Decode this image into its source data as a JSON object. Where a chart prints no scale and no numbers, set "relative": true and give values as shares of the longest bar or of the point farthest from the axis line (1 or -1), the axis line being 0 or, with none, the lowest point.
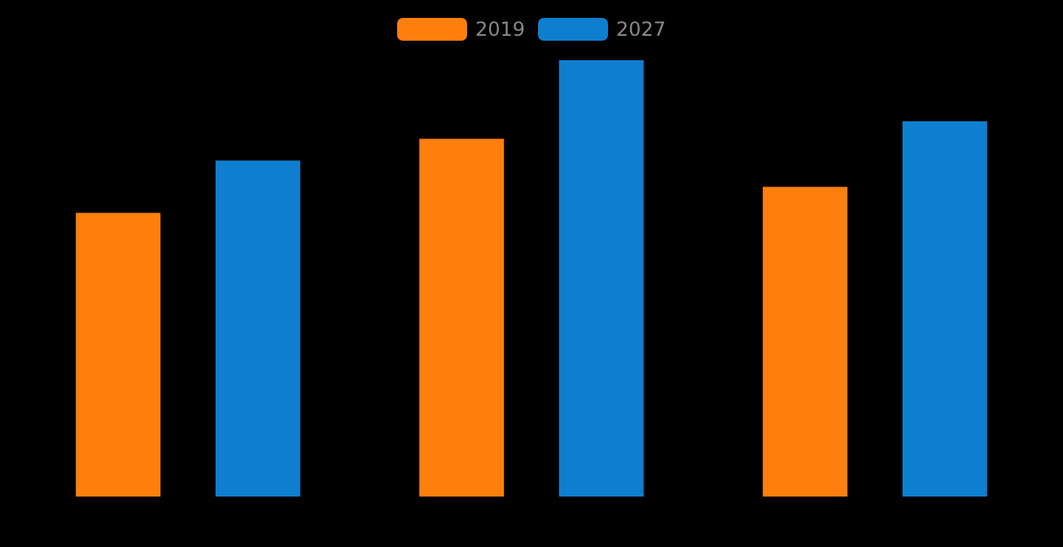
{
  "chart_data": {
    "type": "bar",
    "relative": true,
    "categories": [
      null,
      null,
      null
    ],
    "series": [
      {
        "name": "2019",
        "color": "#ff7f0e",
        "values": [
          0.65,
          0.82,
          0.71
        ]
      },
      {
        "name": "2027",
        "color": "#0e7fcf",
        "values": [
          0.77,
          1,
          0.86
        ]
      }
    ],
    "legend": "top",
    "grid": false
  }
}
